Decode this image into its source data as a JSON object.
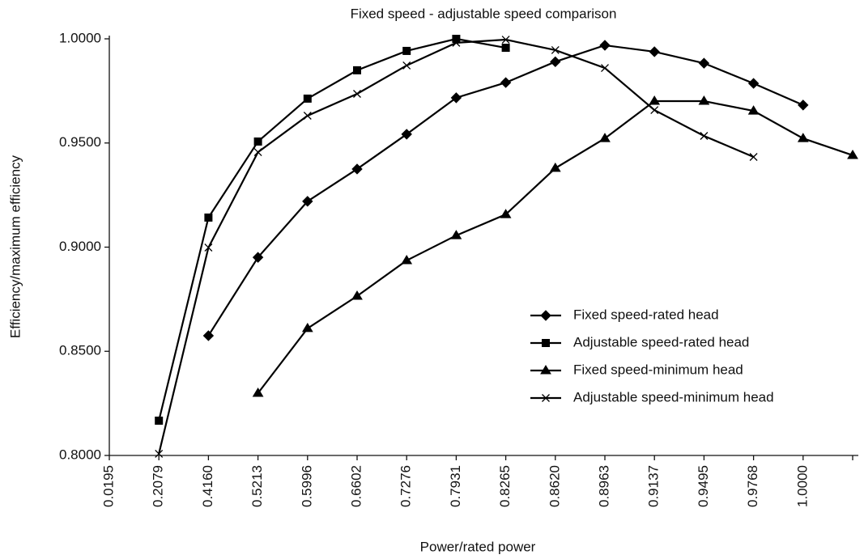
{
  "chart_data": {
    "type": "line",
    "title": "Fixed speed - adjustable speed comparison",
    "x_label": "Power/rated power",
    "y_label": "Efficiency/maximum efficiency",
    "categories": [
      "0.0195",
      "0.2079",
      "0.4160",
      "0.5213",
      "0.5996",
      "0.6602",
      "0.7276",
      "0.7931",
      "0.8265",
      "0.8620",
      "0.8963",
      "0.9137",
      "0.9495",
      "0.9768",
      "1.0000",
      null
    ],
    "ylim": [
      0.8,
      1.0
    ],
    "yticks": [
      {
        "value": 0.8,
        "label": "0.8000"
      },
      {
        "value": 0.85,
        "label": "0.8500"
      },
      {
        "value": 0.9,
        "label": "0.9000"
      },
      {
        "value": 0.95,
        "label": "0.9500"
      },
      {
        "value": 1.0,
        "label": "1.0000"
      }
    ],
    "legend": "center right",
    "series": [
      {
        "name": "Fixed speed-rated head",
        "color": "#000000",
        "marker": "diamond",
        "values": [
          null,
          null,
          0.8575,
          0.8951,
          0.922,
          0.9375,
          0.9542,
          0.9717,
          0.979,
          0.989,
          0.9969,
          0.9938,
          0.9883,
          0.9786,
          0.9682,
          null
        ]
      },
      {
        "name": "Adjustable speed-rated head",
        "color": "#000000",
        "marker": "square",
        "values": [
          null,
          0.8167,
          0.9142,
          0.9507,
          0.9713,
          0.9849,
          0.9942,
          1.0,
          0.9957,
          null,
          null,
          null,
          null,
          null,
          null,
          null
        ]
      },
      {
        "name": "Fixed speed-minimum head",
        "color": "#000000",
        "marker": "triangle",
        "values": [
          null,
          null,
          null,
          0.8299,
          0.861,
          0.8765,
          0.8936,
          0.9056,
          0.9157,
          0.9379,
          0.9522,
          0.9701,
          0.9701,
          0.9654,
          0.9522,
          0.9441
        ]
      },
      {
        "name": "Adjustable speed-minimum head",
        "color": "#000000",
        "marker": "x",
        "values": [
          null,
          0.8008,
          0.8998,
          0.9456,
          0.9631,
          0.9736,
          0.9872,
          0.9981,
          0.9996,
          0.9946,
          0.986,
          0.9658,
          0.9534,
          0.9433,
          null,
          null
        ]
      }
    ]
  }
}
